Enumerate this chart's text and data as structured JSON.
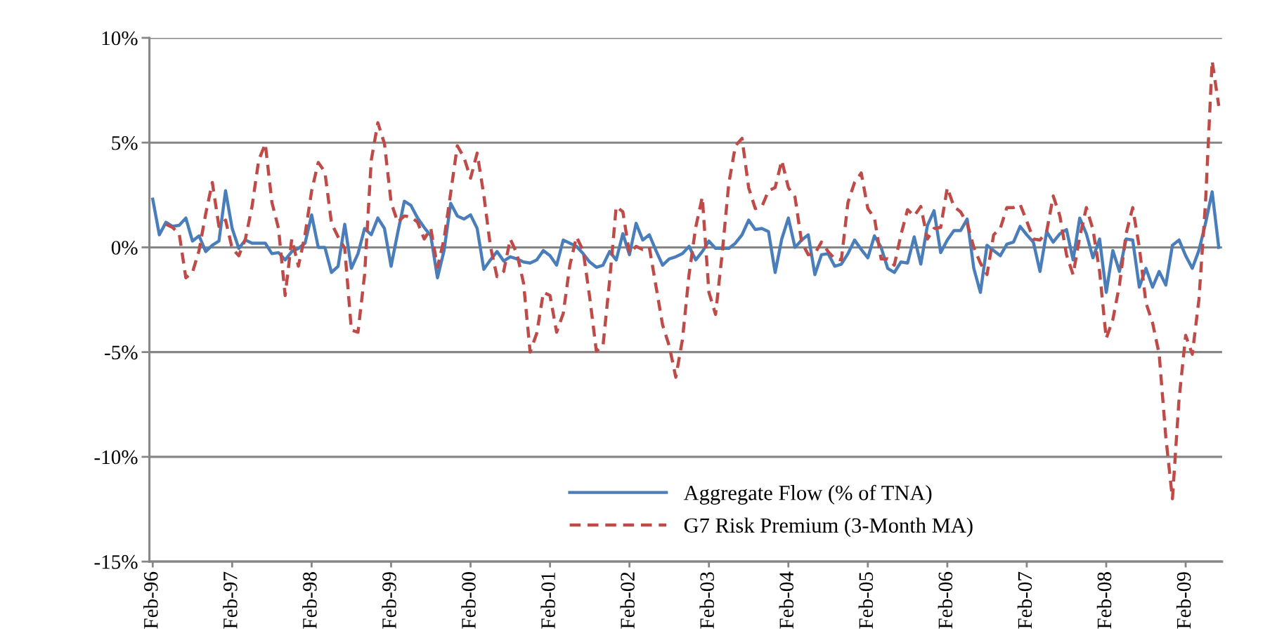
{
  "chart_data": {
    "type": "line",
    "categories": [
      "Feb-96",
      null,
      null,
      null,
      null,
      null,
      null,
      null,
      null,
      null,
      null,
      null,
      "Feb-97",
      null,
      null,
      null,
      null,
      null,
      null,
      null,
      null,
      null,
      null,
      null,
      "Feb-98",
      null,
      null,
      null,
      null,
      null,
      null,
      null,
      null,
      null,
      null,
      null,
      "Feb-99",
      null,
      null,
      null,
      null,
      null,
      null,
      null,
      null,
      null,
      null,
      null,
      "Feb-00",
      null,
      null,
      null,
      null,
      null,
      null,
      null,
      null,
      null,
      null,
      null,
      "Feb-01",
      null,
      null,
      null,
      null,
      null,
      null,
      null,
      null,
      null,
      null,
      null,
      "Feb-02",
      null,
      null,
      null,
      null,
      null,
      null,
      null,
      null,
      null,
      null,
      null,
      "Feb-03",
      null,
      null,
      null,
      null,
      null,
      null,
      null,
      null,
      null,
      null,
      null,
      "Feb-04",
      null,
      null,
      null,
      null,
      null,
      null,
      null,
      null,
      null,
      null,
      null,
      "Feb-05",
      null,
      null,
      null,
      null,
      null,
      null,
      null,
      null,
      null,
      null,
      null,
      "Feb-06",
      null,
      null,
      null,
      null,
      null,
      null,
      null,
      null,
      null,
      null,
      null,
      "Feb-07",
      null,
      null,
      null,
      null,
      null,
      null,
      null,
      null,
      null,
      null,
      null,
      "Feb-08",
      null,
      null,
      null,
      null,
      null,
      null,
      null,
      null,
      null,
      null,
      null,
      "Feb-09",
      null,
      null,
      null,
      null,
      null
    ],
    "series": [
      {
        "name": "Aggregate Flow (% of TNA)",
        "color": "#4a7ebb",
        "line_style": "solid",
        "values": [
          2.3,
          0.6,
          1.2,
          1.0,
          1.05,
          1.4,
          0.3,
          0.55,
          -0.2,
          0.1,
          0.3,
          2.7,
          0.9,
          -0.05,
          0.35,
          0.2,
          0.2,
          0.2,
          -0.3,
          -0.25,
          -0.6,
          -0.2,
          -0.05,
          0.2,
          1.55,
          0.0,
          0.0,
          -1.2,
          -0.9,
          1.1,
          -1.0,
          -0.3,
          0.9,
          0.6,
          1.4,
          0.9,
          -0.9,
          0.7,
          2.2,
          2.0,
          1.4,
          0.95,
          0.55,
          -1.45,
          -0.15,
          2.1,
          1.5,
          1.35,
          1.55,
          0.9,
          -1.05,
          -0.6,
          -0.2,
          -0.65,
          -0.45,
          -0.55,
          -0.7,
          -0.75,
          -0.6,
          -0.15,
          -0.4,
          -0.85,
          0.35,
          0.2,
          0.05,
          -0.3,
          -0.7,
          -0.95,
          -0.85,
          -0.2,
          -0.6,
          0.65,
          -0.35,
          1.15,
          0.35,
          0.6,
          -0.15,
          -0.85,
          -0.55,
          -0.45,
          -0.3,
          0.05,
          -0.6,
          -0.2,
          0.3,
          -0.05,
          -0.05,
          -0.05,
          0.2,
          0.6,
          1.3,
          0.85,
          0.9,
          0.75,
          -1.2,
          0.4,
          1.4,
          0.0,
          0.35,
          0.6,
          -1.3,
          -0.35,
          -0.3,
          -0.9,
          -0.8,
          -0.3,
          0.35,
          -0.1,
          -0.5,
          0.55,
          0.0,
          -1.0,
          -1.2,
          -0.7,
          -0.75,
          0.5,
          -0.8,
          1.05,
          1.75,
          -0.25,
          0.35,
          0.8,
          0.8,
          1.35,
          -1.0,
          -2.15,
          0.1,
          -0.15,
          -0.4,
          0.15,
          0.25,
          1.0,
          0.6,
          0.25,
          -1.15,
          0.75,
          0.25,
          0.65,
          0.85,
          -0.6,
          1.4,
          0.65,
          -0.5,
          0.4,
          -2.15,
          -0.15,
          -1.15,
          0.4,
          0.35,
          -1.9,
          -1.0,
          -1.9,
          -1.15,
          -1.8,
          0.1,
          0.35,
          -0.4,
          -1.0,
          -0.15,
          1.15,
          2.65,
          0.0
        ]
      },
      {
        "name": "G7 Risk Premium (3-Month MA)",
        "color": "#be4b48",
        "line_style": "dashed",
        "values": [
          null,
          null,
          1.1,
          0.95,
          0.65,
          -1.45,
          -1.2,
          -0.15,
          1.6,
          3.1,
          1.0,
          1.3,
          -0.05,
          -0.4,
          0.4,
          1.95,
          4.15,
          4.95,
          2.15,
          0.9,
          -2.3,
          0.4,
          -0.9,
          0.6,
          2.7,
          4.05,
          3.6,
          1.15,
          0.5,
          -0.05,
          -3.95,
          -4.05,
          -1.3,
          4.15,
          5.95,
          4.95,
          2.15,
          1.2,
          1.5,
          1.45,
          1.2,
          0.4,
          0.9,
          -0.95,
          0.4,
          2.6,
          4.85,
          4.3,
          3.3,
          4.5,
          2.5,
          0.05,
          -1.4,
          -1.15,
          0.4,
          -0.3,
          -1.7,
          -5.0,
          -4.1,
          -2.15,
          -2.3,
          -4.05,
          -3.15,
          -0.85,
          0.5,
          -0.15,
          -2.4,
          -4.95,
          -4.7,
          -1.6,
          1.95,
          1.7,
          -0.3,
          0.05,
          -0.1,
          0.0,
          -1.85,
          -3.7,
          -4.7,
          -6.2,
          -4.4,
          -1.3,
          0.95,
          2.4,
          -2.15,
          -3.2,
          -0.3,
          3.05,
          4.85,
          5.2,
          2.85,
          1.85,
          1.95,
          2.7,
          2.85,
          4.15,
          2.85,
          2.4,
          0.25,
          -0.35,
          -0.3,
          0.25,
          -0.2,
          -0.55,
          -0.6,
          2.15,
          3.1,
          3.55,
          1.85,
          1.4,
          -0.55,
          -0.55,
          -0.85,
          0.6,
          1.8,
          1.5,
          1.95,
          0.4,
          0.9,
          0.95,
          2.85,
          1.95,
          1.7,
          1.15,
          0.0,
          -0.75,
          -1.3,
          0.6,
          0.9,
          1.9,
          1.9,
          2.05,
          1.25,
          0.4,
          0.35,
          0.75,
          2.45,
          1.5,
          -0.35,
          -1.3,
          0.5,
          1.9,
          0.85,
          -1.15,
          -4.35,
          -3.45,
          -1.8,
          0.65,
          1.9,
          0.0,
          -2.65,
          -3.6,
          -5.1,
          -9.05,
          -12.0,
          -7.25,
          -4.2,
          -5.1,
          -2.5,
          2.15,
          8.9,
          6.75
        ]
      }
    ],
    "ylim": [
      -15,
      10
    ],
    "yticks": [
      {
        "value": -15,
        "label": "-15%"
      },
      {
        "value": -10,
        "label": "-10%"
      },
      {
        "value": -5,
        "label": "-5%"
      },
      {
        "value": 0,
        "label": "0%"
      },
      {
        "value": 5,
        "label": "5%"
      },
      {
        "value": 10,
        "label": "10%"
      }
    ],
    "grid": "y",
    "legend": "bottom",
    "marker": "none"
  }
}
